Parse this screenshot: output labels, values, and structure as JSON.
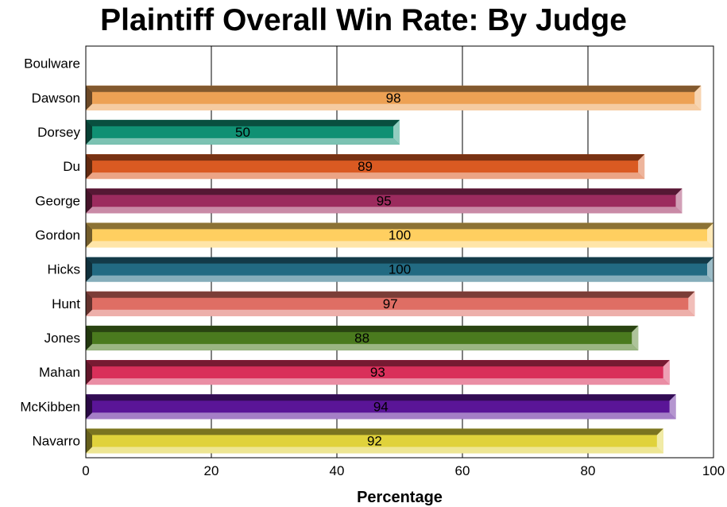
{
  "chart_data": {
    "type": "bar",
    "orientation": "horizontal",
    "title": "Plaintiff Overall Win Rate: By Judge",
    "xlabel": "Percentage",
    "ylabel": "",
    "xlim": [
      0,
      100
    ],
    "x_ticks": [
      "0",
      "20",
      "40",
      "60",
      "80",
      "100"
    ],
    "grid": "vertical",
    "categories": [
      "Boulware",
      "Dawson",
      "Dorsey",
      "Du",
      "George",
      "Gordon",
      "Hicks",
      "Hunt",
      "Jones",
      "Mahan",
      "McKibben",
      "Navarro"
    ],
    "values": [
      null,
      98,
      50,
      89,
      95,
      100,
      100,
      97,
      88,
      93,
      94,
      92
    ],
    "data_labels": [
      "",
      "98",
      "50",
      "89",
      "95",
      "100",
      "100",
      "97",
      "88",
      "93",
      "94",
      "92"
    ],
    "colors": [
      "#888888",
      "#EDA154",
      "#109073",
      "#DA5A22",
      "#9C2B5E",
      "#FFCF60",
      "#226A82",
      "#DF6E64",
      "#4A7A1E",
      "#D92F5A",
      "#5A1597",
      "#E0D23B"
    ]
  }
}
